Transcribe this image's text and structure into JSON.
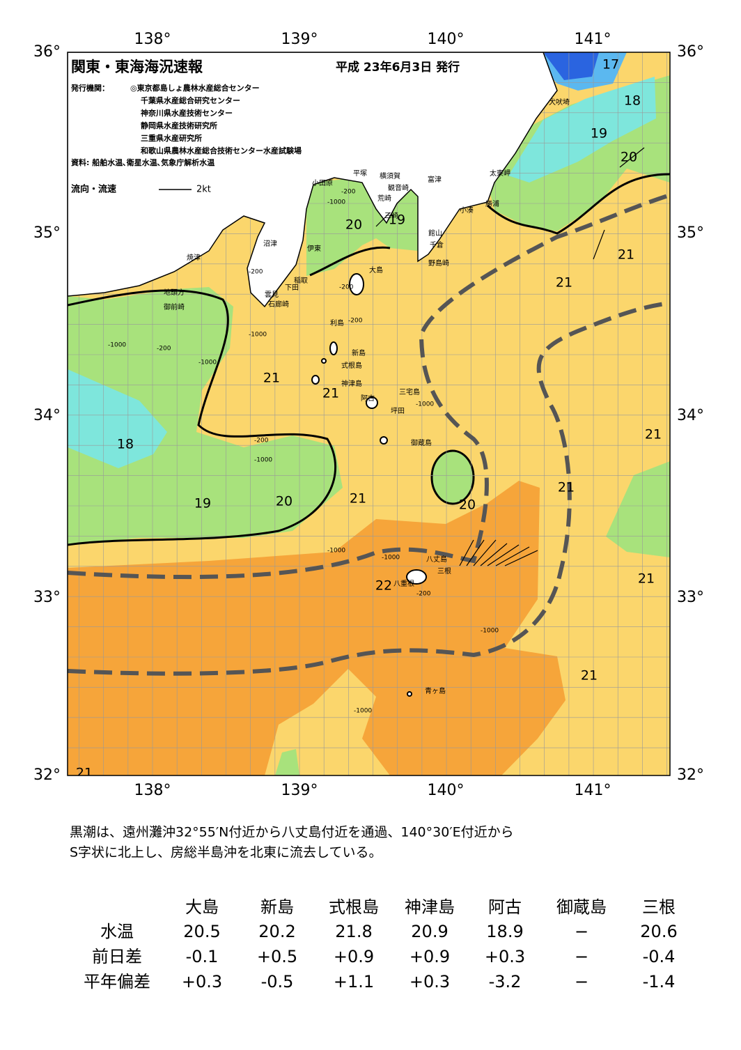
{
  "header": {
    "title": "関東・東海海況速報",
    "date": "平成 23年6月3日 発行",
    "issuer_label": "発行機関：",
    "issuers": [
      "◎東京都島しょ農林水産総合センター",
      "千葉県水産総合研究センター",
      "神奈川県水産技術センター",
      "静岡県水産技術研究所",
      "三重県水産研究所",
      "和歌山県農林水産総合技術センター水産試験場"
    ],
    "source": "資料: 船舶水温､衛星水温､気象庁解析水温",
    "legend_label": "流向・流速",
    "legend_scale": "2kt"
  },
  "axes": {
    "lon_labels": [
      "138°",
      "139°",
      "140°",
      "141°"
    ],
    "lat_labels": [
      "36°",
      "35°",
      "34°",
      "33°",
      "32°"
    ]
  },
  "places": [
    "犬吠埼",
    "太東岬",
    "勝浦",
    "小湊",
    "富津",
    "横須賀",
    "観音崎",
    "平塚",
    "小田原",
    "荒崎",
    "三崎",
    "館山",
    "千倉",
    "野島崎",
    "沼津",
    "伊東",
    "焼津",
    "稲取",
    "下田",
    "雲見",
    "石廊崎",
    "地頭方",
    "御前崎",
    "大島",
    "利島",
    "新島",
    "式根島",
    "神津島",
    "三宅島",
    "阿古",
    "坪田",
    "御蔵島",
    "八丈島",
    "八重根",
    "三根",
    "青ヶ島"
  ],
  "isotherm_labels": [
    17,
    18,
    19,
    20,
    21,
    21,
    20,
    19,
    21,
    21,
    18,
    19,
    20,
    21,
    20,
    21,
    21,
    21,
    22,
    21,
    21
  ],
  "depth_labels": [
    "-200",
    "-1000",
    "-200",
    "-200",
    "-1000",
    "-200",
    "-1000",
    "-200",
    "-1000",
    "-200",
    "-1000",
    "-1000",
    "-1000",
    "-200",
    "-1000",
    "-1000",
    "-1000"
  ],
  "comment": [
    "黒潮は、遠州灘沖32°55′N付近から八丈島付近を通過、140°30′E付近から",
    "S字状に北上し、房総半島沖を北東に流去している。"
  ],
  "table": {
    "columns": [
      "大島",
      "新島",
      "式根島",
      "神津島",
      "阿古",
      "御蔵島",
      "三根"
    ],
    "rows": [
      {
        "label": "水温",
        "values": [
          "20.5",
          "20.2",
          "21.8",
          "20.9",
          "18.9",
          "−",
          "20.6"
        ]
      },
      {
        "label": "前日差",
        "values": [
          "-0.1",
          "+0.5",
          "+0.9",
          "+0.9",
          "+0.3",
          "−",
          "-0.4"
        ]
      },
      {
        "label": "平年偏差",
        "values": [
          "+0.3",
          "-0.5",
          "+1.1",
          "+0.3",
          "-3.2",
          "−",
          "-1.4"
        ]
      }
    ]
  }
}
